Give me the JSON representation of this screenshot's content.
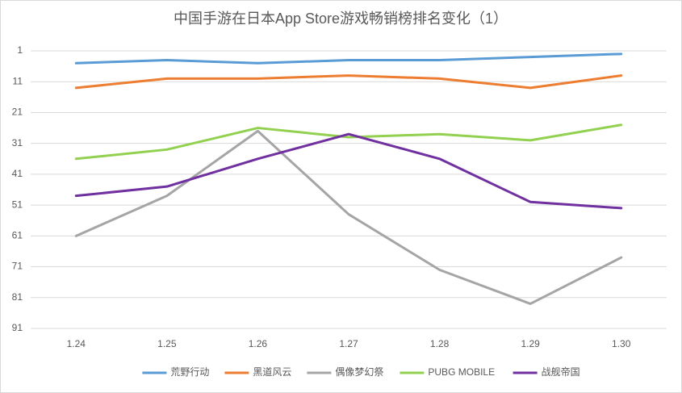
{
  "chart_data": {
    "type": "line",
    "title": "中国手游在日本App Store游戏畅销榜排名变化（1）",
    "categories": [
      "1.24",
      "1.25",
      "1.26",
      "1.27",
      "1.28",
      "1.29",
      "1.30"
    ],
    "series": [
      {
        "name": "荒野行动",
        "color": "#5b9bd5",
        "values": [
          5,
          4,
          5,
          4,
          4,
          3,
          2
        ]
      },
      {
        "name": "黑道风云",
        "color": "#ed7d31",
        "values": [
          13,
          10,
          10,
          9,
          10,
          13,
          9
        ]
      },
      {
        "name": "偶像梦幻祭",
        "color": "#a5a5a5",
        "values": [
          61,
          48,
          27,
          54,
          72,
          83,
          68
        ]
      },
      {
        "name": "PUBG MOBILE",
        "color": "#92d050",
        "values": [
          36,
          33,
          26,
          29,
          28,
          30,
          25
        ]
      },
      {
        "name": "战舰帝国",
        "color": "#7030a0",
        "values": [
          48,
          45,
          36,
          28,
          36,
          50,
          52
        ]
      }
    ],
    "ylim": [
      91,
      1
    ],
    "yticks": [
      1,
      11,
      21,
      31,
      41,
      51,
      61,
      71,
      81,
      91
    ],
    "grid": true,
    "legend": "bottom"
  }
}
